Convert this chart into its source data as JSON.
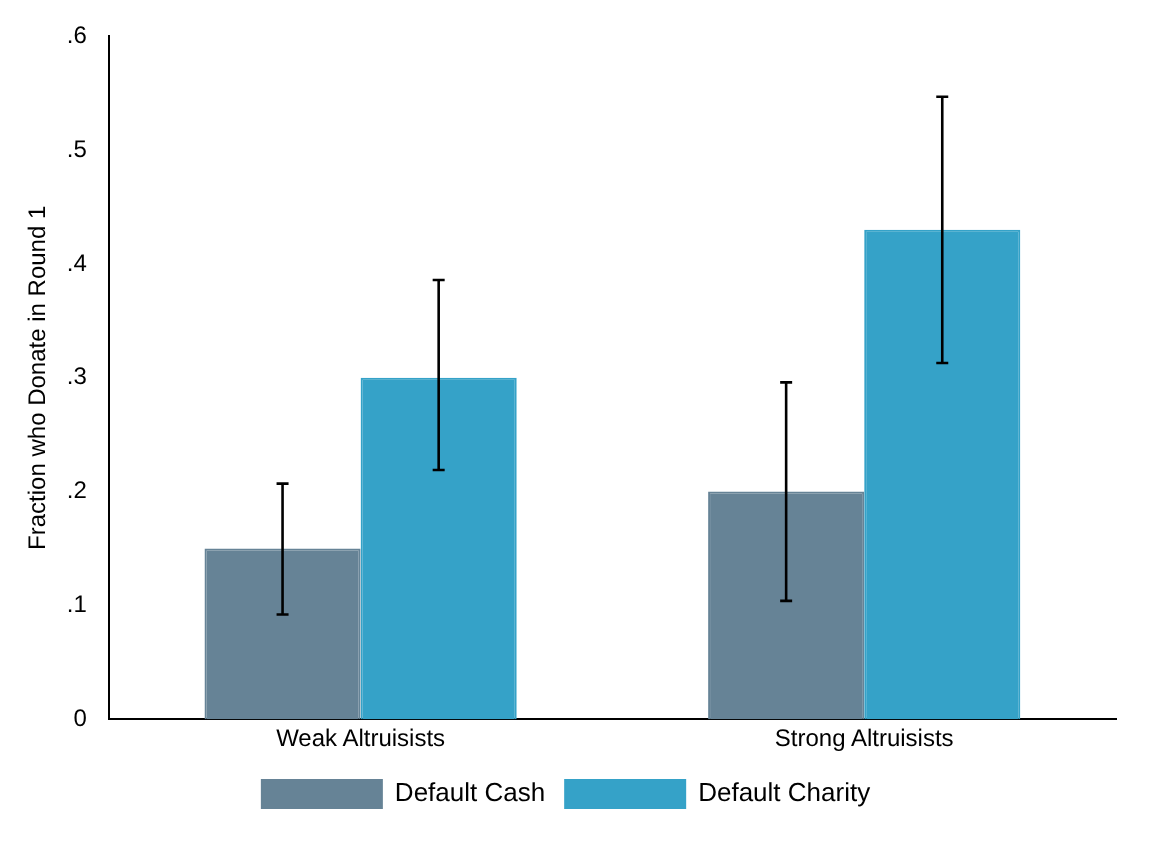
{
  "chart_data": {
    "type": "bar",
    "ylabel": "Fraction who Donate in Round 1",
    "categories": [
      "Weak Altruisists",
      "Strong Altruisists"
    ],
    "series": [
      {
        "name": "Default Cash",
        "color": "#668396",
        "values": [
          0.15,
          0.2
        ],
        "errors": [
          [
            0.092,
            0.207
          ],
          [
            0.104,
            0.296
          ]
        ]
      },
      {
        "name": "Default Charity",
        "color": "#35a2c8",
        "values": [
          0.3,
          0.43
        ],
        "errors": [
          [
            0.219,
            0.386
          ],
          [
            0.313,
            0.547
          ]
        ]
      }
    ],
    "ylim": [
      0,
      0.6
    ],
    "yticks": [
      {
        "value": 0,
        "label": "0"
      },
      {
        "value": 0.1,
        "label": ".1"
      },
      {
        "value": 0.2,
        "label": ".2"
      },
      {
        "value": 0.3,
        "label": ".3"
      },
      {
        "value": 0.4,
        "label": ".4"
      },
      {
        "value": 0.5,
        "label": ".5"
      },
      {
        "value": 0.6,
        "label": ".6"
      }
    ],
    "grid": false,
    "legend": "bottom"
  }
}
